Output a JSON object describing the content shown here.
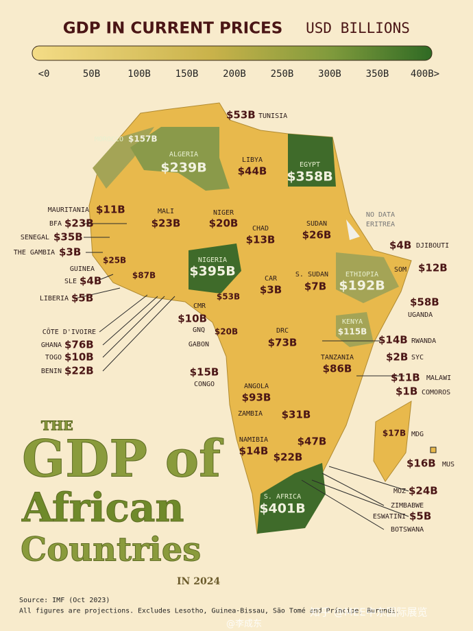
{
  "header": {
    "title": "GDP IN CURRENT PRICES",
    "unit": "USD BILLIONS",
    "scale_labels": [
      "<0",
      "50B",
      "100B",
      "150B",
      "200B",
      "250B",
      "300B",
      "350B",
      "400B>"
    ]
  },
  "countries": [
    {
      "name": "TUNISIA",
      "value": "$53B"
    },
    {
      "name": "MOROCCO",
      "value": "$157B"
    },
    {
      "name": "ALGERIA",
      "value": "$239B"
    },
    {
      "name": "LIBYA",
      "value": "$44B"
    },
    {
      "name": "EGYPT",
      "value": "$358B"
    },
    {
      "name": "ERITREA",
      "value": "NO DATA"
    },
    {
      "name": "MAURITANIA",
      "value": "$11B"
    },
    {
      "name": "MALI",
      "value": "$23B"
    },
    {
      "name": "NIGER",
      "value": "$20B"
    },
    {
      "name": "CHAD",
      "value": "$13B"
    },
    {
      "name": "SUDAN",
      "value": "$26B"
    },
    {
      "name": "BFA",
      "value": "$23B"
    },
    {
      "name": "SENEGAL",
      "value": "$35B"
    },
    {
      "name": "THE GAMBIA",
      "value": "$3B"
    },
    {
      "name": "GUINEA",
      "value": "$25B"
    },
    {
      "name": "SLE",
      "value": "$4B"
    },
    {
      "name": "LIBERIA",
      "value": "$5B"
    },
    {
      "name": "NIGERIA",
      "value": "$395B"
    },
    {
      "name": "DJIBOUTI",
      "value": "$4B"
    },
    {
      "name": "SOM",
      "value": "$12B"
    },
    {
      "name": "ETHIOPIA",
      "value": "$192B"
    },
    {
      "name": "S. SUDAN",
      "value": "$7B"
    },
    {
      "name": "CAR",
      "value": "$3B"
    },
    {
      "name": "CÔTE D'IVOIRE",
      "value": "$87B"
    },
    {
      "name": "GHANA",
      "value": "$76B"
    },
    {
      "name": "TOGO",
      "value": "$10B"
    },
    {
      "name": "BENIN",
      "value": "$22B"
    },
    {
      "name": "CMR",
      "value": "$53B"
    },
    {
      "name": "GNQ",
      "value": "$10B"
    },
    {
      "name": "GABON",
      "value": "$20B"
    },
    {
      "name": "CONGO",
      "value": "$15B"
    },
    {
      "name": "DRC",
      "value": "$73B"
    },
    {
      "name": "UGANDA",
      "value": "$58B"
    },
    {
      "name": "KENYA",
      "value": "$115B"
    },
    {
      "name": "RWANDA",
      "value": "$14B"
    },
    {
      "name": "SYC",
      "value": "$2B"
    },
    {
      "name": "TANZANIA",
      "value": "$86B"
    },
    {
      "name": "ANGOLA",
      "value": "$93B"
    },
    {
      "name": "ZAMBIA",
      "value": "$31B"
    },
    {
      "name": "MALAWI",
      "value": "$11B"
    },
    {
      "name": "COMOROS",
      "value": "$1B"
    },
    {
      "name": "MDG",
      "value": "$17B"
    },
    {
      "name": "MUS",
      "value": "$16B"
    },
    {
      "name": "NAMIBIA",
      "value": "$14B"
    },
    {
      "name": "ZIMBABWE",
      "value": "$47B"
    },
    {
      "name": "BOTSWANA",
      "value": "$22B"
    },
    {
      "name": "MOZ",
      "value": "$24B"
    },
    {
      "name": "ESWATINI",
      "value": "$5B"
    },
    {
      "name": "S. AFRICA",
      "value": "$401B"
    }
  ],
  "big_title": {
    "the": "THE",
    "line1": "GDP of",
    "line2": "African",
    "line3": "Countries",
    "year": "IN 2024"
  },
  "footer": {
    "source": "Source: IMF (Oct 2023)",
    "note": "All figures are projections. Excludes Lesotho, Guinea-Bissau, São Tomé and Príncipe, Burundi."
  },
  "watermarks": [
    "知乎 @MEE中东国际展览",
    "@李成东"
  ]
}
